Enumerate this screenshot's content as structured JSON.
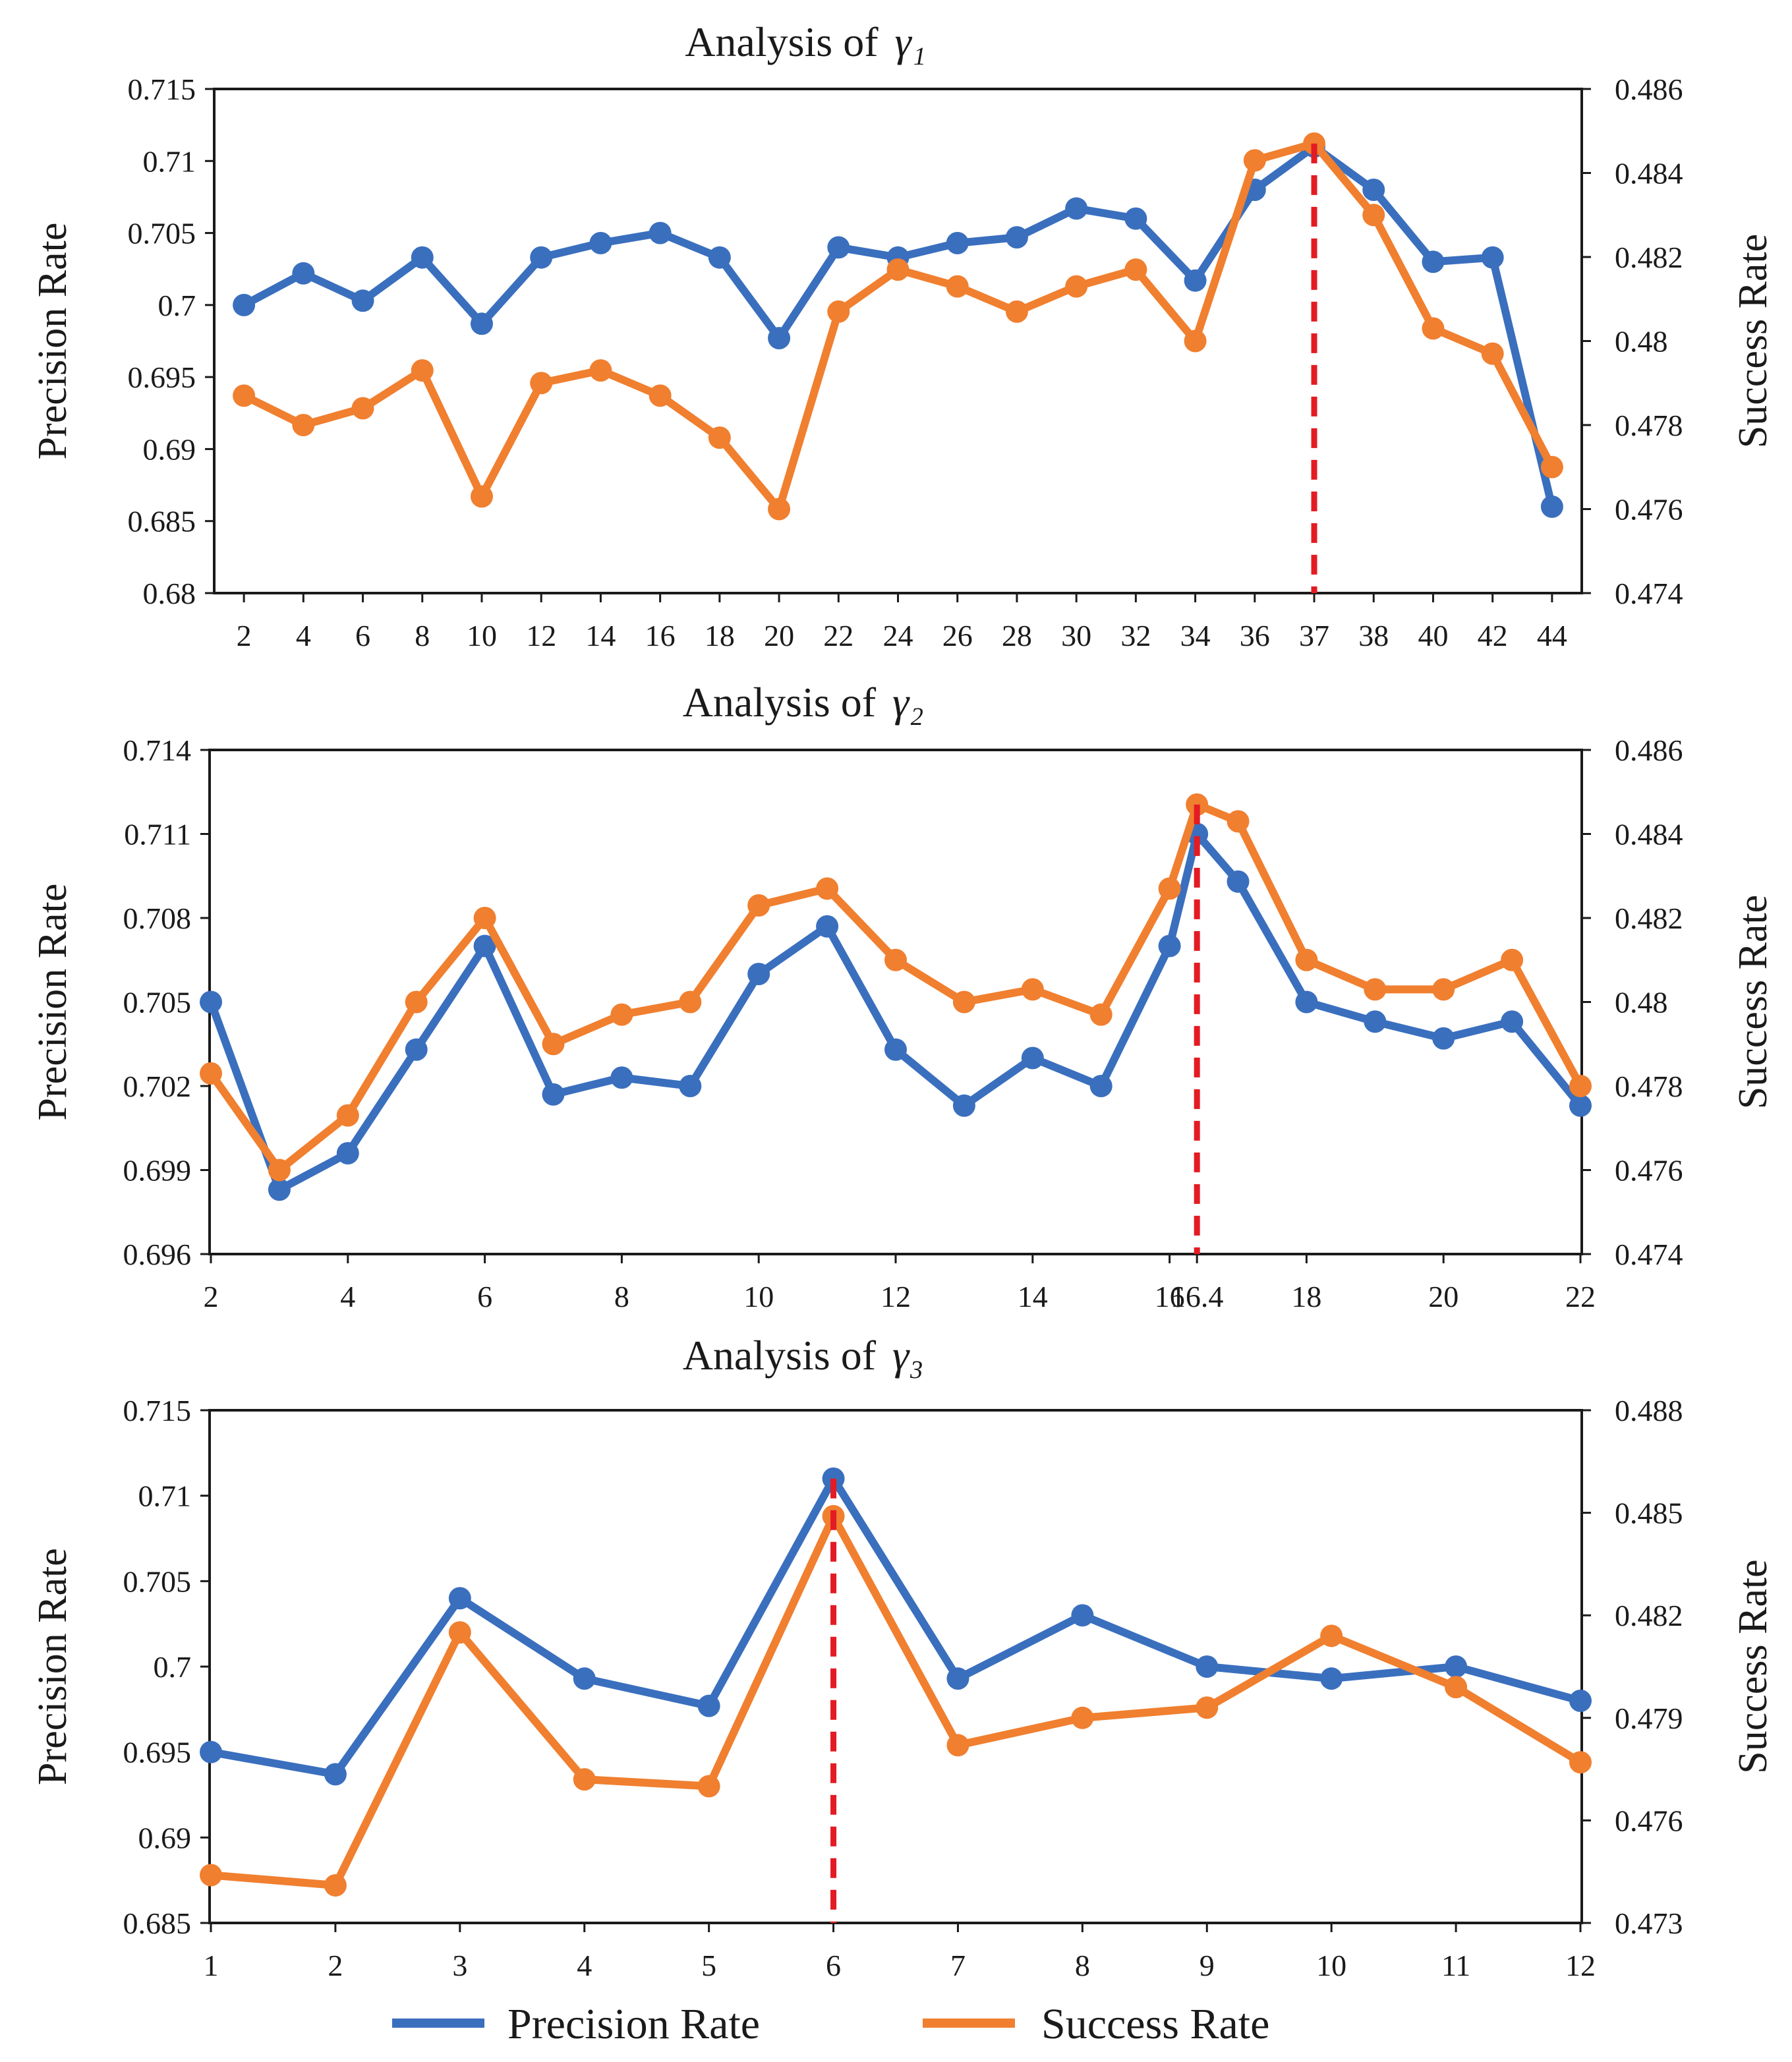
{
  "colors": {
    "precision": "#3A6FBE",
    "success": "#F07F2F",
    "marker": "#E31B23",
    "axis": "#1a1a1a"
  },
  "legend": {
    "precision_label": "Precision Rate",
    "success_label": "Success Rate"
  },
  "chart_data": [
    {
      "type": "line",
      "title": "Analysis of",
      "title_symbol": "γ₁",
      "xlabel": "",
      "ylabel_left": "Precision Rate",
      "ylabel_right": "Success Rate",
      "categories": [
        "2",
        "4",
        "6",
        "8",
        "10",
        "12",
        "14",
        "16",
        "18",
        "20",
        "22",
        "24",
        "26",
        "28",
        "30",
        "32",
        "34",
        "36",
        "37",
        "38",
        "40",
        "42",
        "44"
      ],
      "ylim_left": [
        0.68,
        0.715
      ],
      "yticks_left": [
        "0.68",
        "0.685",
        "0.69",
        "0.695",
        "0.7",
        "0.705",
        "0.71",
        "0.715"
      ],
      "ylim_right": [
        0.474,
        0.486
      ],
      "yticks_right": [
        "0.474",
        "0.476",
        "0.478",
        "0.48",
        "0.482",
        "0.484",
        "0.486"
      ],
      "series": [
        {
          "name": "Precision Rate",
          "axis": "left",
          "values": [
            0.7,
            0.7022,
            0.7003,
            0.7033,
            0.6987,
            0.7033,
            0.7043,
            0.705,
            0.7033,
            0.6977,
            0.704,
            0.7033,
            0.7043,
            0.7047,
            0.7067,
            0.706,
            0.7017,
            0.708,
            0.711,
            0.708,
            0.703,
            0.7033,
            0.686
          ]
        },
        {
          "name": "Success Rate",
          "axis": "right",
          "values": [
            0.4787,
            0.478,
            0.4784,
            0.4793,
            0.4763,
            0.479,
            0.4793,
            0.4787,
            0.4777,
            0.476,
            0.4807,
            0.4817,
            0.4813,
            0.4807,
            0.4813,
            0.4817,
            0.48,
            0.4843,
            0.4847,
            0.483,
            0.4803,
            0.4797,
            0.477
          ]
        }
      ],
      "highlight_category": "37",
      "grid": false
    },
    {
      "type": "line",
      "title": "Analysis of",
      "title_symbol": "γ₂",
      "xlabel": "",
      "ylabel_left": "Precision Rate",
      "ylabel_right": "Success Rate",
      "x": [
        2,
        3,
        4,
        5,
        6,
        7,
        8,
        9,
        10,
        11,
        12,
        13,
        14,
        15,
        16,
        16.4,
        17,
        18,
        19,
        20,
        21,
        22
      ],
      "xlim": [
        2,
        22
      ],
      "xtick_values": [
        2,
        4,
        6,
        8,
        10,
        12,
        14,
        16,
        16.4,
        18,
        20,
        22
      ],
      "xtick_labels": [
        "2",
        "4",
        "6",
        "8",
        "10",
        "12",
        "14",
        "16",
        "16.4",
        "18",
        "20",
        "22"
      ],
      "ylim_left": [
        0.696,
        0.714
      ],
      "yticks_left": [
        "0.696",
        "0.699",
        "0.702",
        "0.705",
        "0.708",
        "0.711",
        "0.714"
      ],
      "ylim_right": [
        0.474,
        0.486
      ],
      "yticks_right": [
        "0.474",
        "0.476",
        "0.478",
        "0.48",
        "0.482",
        "0.484",
        "0.486"
      ],
      "series": [
        {
          "name": "Precision Rate",
          "axis": "left",
          "values": [
            0.705,
            0.6983,
            0.6996,
            0.7033,
            0.707,
            0.7017,
            0.7023,
            0.702,
            0.706,
            0.7077,
            0.7033,
            0.7013,
            0.703,
            0.702,
            0.707,
            0.711,
            0.7093,
            0.705,
            0.7043,
            0.7037,
            0.7043,
            0.7013
          ]
        },
        {
          "name": "Success Rate",
          "axis": "right",
          "values": [
            0.4783,
            0.476,
            0.4773,
            0.48,
            0.482,
            0.479,
            0.4797,
            0.48,
            0.4823,
            0.4827,
            0.481,
            0.48,
            0.4803,
            0.4797,
            0.4827,
            0.4847,
            0.4843,
            0.481,
            0.4803,
            0.4803,
            0.481,
            0.478
          ]
        }
      ],
      "highlight_x": 16.4,
      "grid": false
    },
    {
      "type": "line",
      "title": "Analysis of",
      "title_symbol": "γ₃",
      "xlabel": "",
      "ylabel_left": "Precision Rate",
      "ylabel_right": "Success Rate",
      "x": [
        1,
        2,
        3,
        4,
        5,
        6,
        7,
        8,
        9,
        10,
        11,
        12
      ],
      "xlim": [
        1,
        12
      ],
      "xtick_values": [
        1,
        2,
        3,
        4,
        5,
        6,
        7,
        8,
        9,
        10,
        11,
        12
      ],
      "xtick_labels": [
        "1",
        "2",
        "3",
        "4",
        "5",
        "6",
        "7",
        "8",
        "9",
        "10",
        "11",
        "12"
      ],
      "ylim_left": [
        0.685,
        0.715
      ],
      "yticks_left": [
        "0.685",
        "0.69",
        "0.695",
        "0.7",
        "0.705",
        "0.71",
        "0.715"
      ],
      "ylim_right": [
        0.473,
        0.488
      ],
      "yticks_right": [
        "0.473",
        "0.476",
        "0.479",
        "0.482",
        "0.485",
        "0.488"
      ],
      "series": [
        {
          "name": "Precision Rate",
          "axis": "left",
          "values": [
            0.695,
            0.6937,
            0.704,
            0.6993,
            0.6977,
            0.711,
            0.6993,
            0.703,
            0.7,
            0.6993,
            0.7,
            0.698
          ]
        },
        {
          "name": "Success Rate",
          "axis": "right",
          "values": [
            0.4744,
            0.4741,
            0.4815,
            0.4772,
            0.477,
            0.4849,
            0.4782,
            0.479,
            0.4793,
            0.4814,
            0.4799,
            0.4777
          ]
        }
      ],
      "highlight_x": 6,
      "grid": false
    }
  ]
}
